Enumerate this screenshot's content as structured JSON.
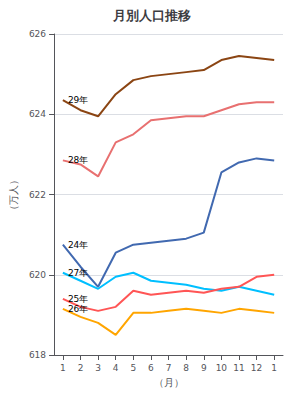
{
  "chart_data": {
    "type": "line",
    "title": "月別人口推移",
    "xlabel": "（月）",
    "ylabel": "（万人）",
    "categories": [
      "1",
      "2",
      "3",
      "4",
      "5",
      "6",
      "7",
      "8",
      "9",
      "10",
      "11",
      "12",
      "1"
    ],
    "series": [
      {
        "name": "29年",
        "color": "#8B4513",
        "values": [
          624.35,
          624.1,
          623.95,
          624.5,
          624.85,
          624.95,
          625.0,
          625.05,
          625.1,
          625.35,
          625.45,
          625.4,
          625.35
        ]
      },
      {
        "name": "28年",
        "color": "#E87070",
        "values": [
          622.85,
          622.75,
          622.45,
          623.3,
          623.5,
          623.85,
          623.9,
          623.95,
          623.95,
          624.1,
          624.25,
          624.3,
          624.3
        ]
      },
      {
        "name": "24年",
        "color": "#4169B0",
        "values": [
          620.75,
          620.2,
          619.7,
          620.55,
          620.75,
          620.8,
          620.85,
          620.9,
          621.05,
          622.55,
          622.8,
          622.9,
          622.85
        ]
      },
      {
        "name": "27年",
        "color": "#00BFFF",
        "values": [
          620.05,
          619.85,
          619.65,
          619.95,
          620.05,
          619.85,
          619.8,
          619.75,
          619.65,
          619.6,
          619.7,
          619.6,
          619.5
        ]
      },
      {
        "name": "25年",
        "color": "#FF5555",
        "values": [
          619.4,
          619.2,
          619.1,
          619.2,
          619.6,
          619.5,
          619.55,
          619.6,
          619.55,
          619.65,
          619.7,
          619.95,
          620.0
        ]
      },
      {
        "name": "26年",
        "color": "#FFA500",
        "values": [
          619.15,
          618.95,
          618.8,
          618.5,
          619.05,
          619.05,
          619.1,
          619.15,
          619.1,
          619.05,
          619.15,
          619.1,
          619.05
        ]
      }
    ],
    "ylim": [
      618,
      626
    ],
    "yticks": [
      618,
      620,
      622,
      624,
      626
    ],
    "grid": true
  }
}
